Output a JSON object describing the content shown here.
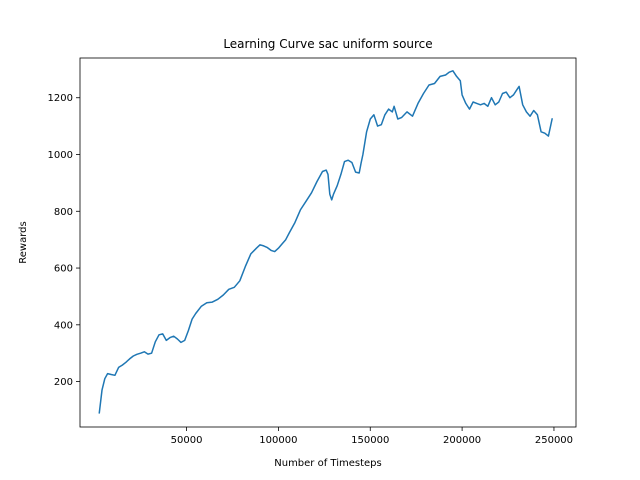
{
  "chart_data": {
    "type": "line",
    "title": "Learning Curve sac uniform source",
    "xlabel": "Number of Timesteps",
    "ylabel": "Rewards",
    "xlim": [
      -8000,
      262000
    ],
    "ylim": [
      40,
      1340
    ],
    "xticks": [
      50000,
      100000,
      150000,
      200000,
      250000
    ],
    "yticks": [
      200,
      400,
      600,
      800,
      1000,
      1200
    ],
    "grid": false,
    "color": "#1f77b4",
    "series": [
      {
        "x": [
          2500,
          4000,
          5500,
          7000,
          9000,
          11000,
          13000,
          15000,
          17000,
          19000,
          21000,
          23000,
          25000,
          27000,
          29000,
          31000,
          33000,
          35000,
          37000,
          39000,
          41000,
          43000,
          45000,
          47000,
          49000,
          51000,
          53000,
          55000,
          58000,
          61000,
          64000,
          67000,
          70000,
          73000,
          76000,
          79000,
          82000,
          85000,
          88000,
          90000,
          92000,
          94000,
          96000,
          98000,
          100000,
          102000,
          104000,
          106000,
          109000,
          112000,
          115000,
          118000,
          121000,
          124000,
          126000,
          127000,
          128000,
          129000,
          130000,
          132000,
          134000,
          136000,
          138000,
          140000,
          142000,
          144000,
          145000,
          146000,
          148000,
          150000,
          152000,
          154000,
          156000,
          158000,
          160000,
          162000,
          163000,
          165000,
          167000,
          170000,
          173000,
          176000,
          179000,
          182000,
          185000,
          188000,
          191000,
          193000,
          195000,
          197000,
          199000,
          200000,
          202000,
          204000,
          206000,
          208000,
          210000,
          212000,
          214000,
          216000,
          218000,
          220000,
          222000,
          224000,
          226000,
          228000,
          230000,
          231000,
          233000,
          235000,
          237000,
          239000,
          241000,
          243000,
          245000,
          247000,
          249000
        ],
        "y": [
          90,
          170,
          210,
          228,
          225,
          222,
          250,
          258,
          268,
          280,
          290,
          296,
          300,
          305,
          297,
          300,
          340,
          365,
          368,
          345,
          355,
          360,
          350,
          338,
          345,
          380,
          420,
          440,
          465,
          478,
          480,
          490,
          505,
          525,
          532,
          555,
          605,
          650,
          670,
          682,
          678,
          672,
          662,
          658,
          670,
          685,
          700,
          725,
          760,
          805,
          835,
          865,
          905,
          940,
          945,
          930,
          860,
          840,
          860,
          890,
          930,
          975,
          980,
          972,
          938,
          935,
          970,
          1000,
          1080,
          1125,
          1140,
          1100,
          1105,
          1140,
          1160,
          1150,
          1170,
          1125,
          1130,
          1150,
          1135,
          1180,
          1215,
          1245,
          1250,
          1275,
          1280,
          1290,
          1295,
          1275,
          1260,
          1210,
          1180,
          1160,
          1185,
          1180,
          1175,
          1180,
          1170,
          1200,
          1175,
          1185,
          1215,
          1220,
          1200,
          1210,
          1230,
          1240,
          1175,
          1150,
          1135,
          1155,
          1140,
          1080,
          1075,
          1065,
          1125
        ]
      }
    ]
  }
}
